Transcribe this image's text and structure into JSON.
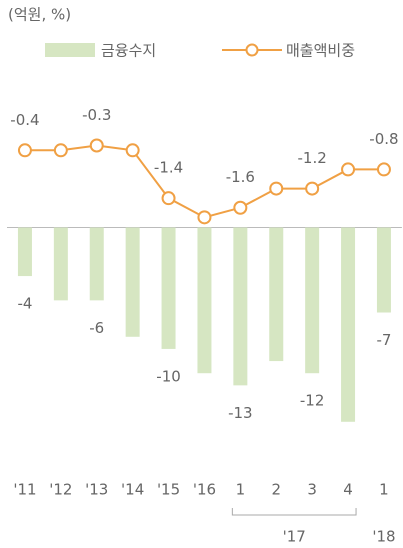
{
  "chart_data": {
    "type": "bar-line",
    "unit_label": "(억원, %)",
    "categories": [
      "'11",
      "'12",
      "'13",
      "'14",
      "'15",
      "'16",
      "1",
      "2",
      "3",
      "4",
      "1"
    ],
    "groups": [
      {
        "label": "'17",
        "span": 4
      },
      {
        "label": "'18",
        "span": 1
      }
    ],
    "series": [
      {
        "name": "금융수지",
        "type": "bar",
        "color": "#d6e6c2",
        "label_color": "#666666",
        "values": [
          -4,
          -6,
          -6,
          -9,
          -10,
          -12,
          -13,
          -11,
          -12,
          -16,
          -7
        ],
        "value_labels": [
          "-4",
          null,
          "-6",
          null,
          "-10",
          null,
          "-13",
          null,
          "-12",
          null,
          "-7"
        ]
      },
      {
        "name": "매출액비중",
        "type": "line",
        "axis": "y2",
        "color": "#f0a044",
        "label_color": "#f0a044",
        "values": [
          -0.4,
          -0.4,
          -0.3,
          -0.4,
          -1.4,
          -1.8,
          -1.6,
          -1.2,
          -1.2,
          -0.8,
          -0.8
        ],
        "value_labels": [
          "-0.4",
          null,
          "-0.3",
          null,
          "-1.4",
          null,
          "-1.6",
          null,
          "-1.2",
          null,
          "-0.8"
        ]
      }
    ],
    "ylim": [
      -17.5,
      10.5
    ],
    "y2lim": [
      -6.45,
      0.65
    ],
    "legend": "top"
  }
}
